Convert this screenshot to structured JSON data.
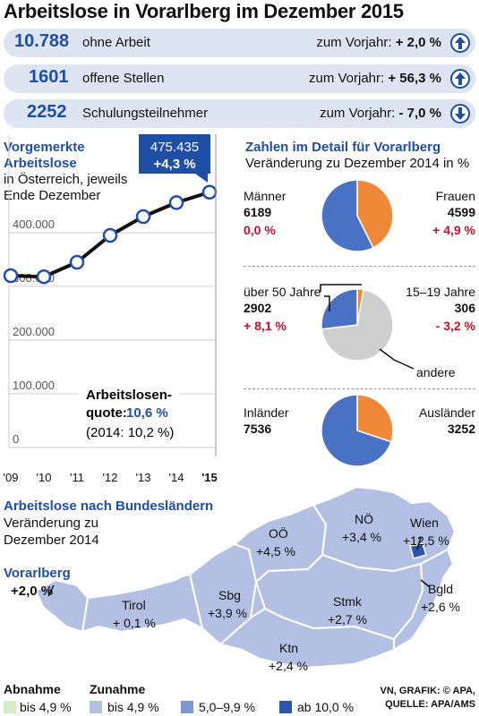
{
  "title": "Arbeitslose in Vorarlberg im Dezember 2015",
  "stats": [
    {
      "value": "10.788",
      "label": "ohne Arbeit",
      "compare_label": "zum Vorjahr:",
      "change": "+ 2,0 %",
      "direction": "up"
    },
    {
      "value": "1601",
      "label": "offene Stellen",
      "compare_label": "zum Vorjahr:",
      "change": "+ 56,3 %",
      "direction": "up"
    },
    {
      "value": "2252",
      "label": "Schulungsteilnehmer",
      "compare_label": "zum Vorjahr:",
      "change": "- 7,0 %",
      "direction": "down"
    }
  ],
  "line_chart_text": {
    "heading1": "Vorgemerkte",
    "heading2": "Arbeitslose",
    "sub1": "in Österreich, jeweils",
    "sub2": "Ende Dezember",
    "callout_value": "475.435",
    "callout_change": "+4,3 %",
    "quote_label1": "Arbeitslosen-",
    "quote_label2": "quote:",
    "quote_value": "10,6 %",
    "quote_prev": "(2014: 10,2 %)"
  },
  "detail": {
    "heading": "Zahlen im Detail für Vorarlberg",
    "subheading": "Veränderung zu Dezember 2014 in %",
    "men_label": "Männer",
    "men_value": "6189",
    "men_change": "0,0 %",
    "women_label": "Frauen",
    "women_value": "4599",
    "women_change": "+ 4,9 %",
    "over50_label": "über 50 Jahre",
    "over50_value": "2902",
    "over50_change": "+ 8,1 %",
    "young_label": "15–19 Jahre",
    "young_value": "306",
    "young_change": "- 3,2 %",
    "other_label": "andere",
    "native_label": "Inländer",
    "native_value": "7536",
    "foreign_label": "Ausländer",
    "foreign_value": "3252"
  },
  "map": {
    "heading": "Arbeitslose nach Bundesländern",
    "sub1": "Veränderung zu",
    "sub2": "Dezember 2014",
    "vorarlberg_label": "Vorarlberg",
    "vorarlberg_value": "+2,0 %",
    "states": [
      {
        "name": "Tirol",
        "value": "+ 0,1 %"
      },
      {
        "name": "Sbg",
        "value": "+3,9 %"
      },
      {
        "name": "OÖ",
        "value": "+4,5 %"
      },
      {
        "name": "NÖ",
        "value": "+3,4 %"
      },
      {
        "name": "Wien",
        "value": "+12,5 %"
      },
      {
        "name": "Stmk",
        "value": "+2,7 %"
      },
      {
        "name": "Bgld",
        "value": "+2,6 %"
      },
      {
        "name": "Ktn",
        "value": "+2,4 %"
      }
    ]
  },
  "legend": {
    "decrease_label": "Abnahme",
    "increase_label": "Zunahme",
    "items": [
      {
        "label": "bis 4,9 %",
        "color": "#d4ecc8"
      },
      {
        "label": "bis 4,9 %",
        "color": "#b3c0e4"
      },
      {
        "label": "5,0–9,9 %",
        "color": "#7f96d4"
      },
      {
        "label": "ab 10,0 %",
        "color": "#2a56b0"
      }
    ]
  },
  "credit1": "VN, GRAFIK: © APA,",
  "credit2": "QUELLE: APA/AMS",
  "colors": {
    "accent_blue": "#1f4ea5",
    "pie_orange": "#f0883a",
    "pie_blue": "#4a72c4",
    "pie_gray": "#cfcfcf",
    "map_fill": "#b3c0e4",
    "map_dark": "#2a56b0"
  },
  "chart_data": [
    {
      "type": "line",
      "x": [
        "'09",
        "'10",
        "'11",
        "'12",
        "'13",
        "'14",
        "'15"
      ],
      "values": [
        320000,
        318000,
        345000,
        395000,
        430000,
        456000,
        475435
      ],
      "y_ticks": [
        "400.000",
        "300.000",
        "200.000",
        "100.000",
        "0"
      ],
      "ylim": [
        0,
        500000
      ],
      "grid": true
    },
    {
      "type": "pie",
      "labels": [
        "Männer",
        "Frauen"
      ],
      "values": [
        6189,
        4599
      ]
    },
    {
      "type": "pie",
      "labels": [
        "über 50 Jahre",
        "15–19 Jahre",
        "andere"
      ],
      "values": [
        2902,
        306,
        7580
      ]
    },
    {
      "type": "pie",
      "labels": [
        "Inländer",
        "Ausländer"
      ],
      "values": [
        7536,
        3252
      ]
    }
  ]
}
